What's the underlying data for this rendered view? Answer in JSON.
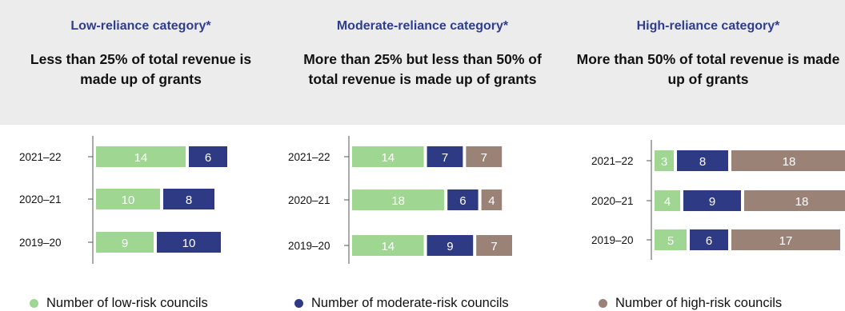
{
  "colors": {
    "low": "#9ed692",
    "moderate": "#2f3a85",
    "high": "#9a8277",
    "heading": "#2e3d8f",
    "band": "#ececec"
  },
  "panels": [
    {
      "title": "Low-reliance category*",
      "description": "Less than 25% of total revenue is made up of grants"
    },
    {
      "title": "Moderate-reliance category*",
      "description": "More than 25% but less than 50% of total revenue is made up of grants"
    },
    {
      "title": "High-reliance category*",
      "description": "More than 50% of total revenue is made up of grants"
    }
  ],
  "legend": [
    {
      "label": "Number of low-risk councils"
    },
    {
      "label": "Number of moderate-risk councils"
    },
    {
      "label": "Number of high-risk councils"
    }
  ],
  "chart_data": [
    {
      "type": "bar",
      "orientation": "horizontal",
      "stacked": true,
      "title": "Low-reliance category*",
      "categories": [
        "2021–22",
        "2020–21",
        "2019–20"
      ],
      "series": [
        {
          "name": "Number of low-risk councils",
          "values": [
            14,
            10,
            9
          ]
        },
        {
          "name": "Number of moderate-risk councils",
          "values": [
            6,
            8,
            10
          ]
        }
      ],
      "legend": "bottom",
      "grid": false
    },
    {
      "type": "bar",
      "orientation": "horizontal",
      "stacked": true,
      "title": "Moderate-reliance category*",
      "categories": [
        "2021–22",
        "2020–21",
        "2019–20"
      ],
      "series": [
        {
          "name": "Number of low-risk councils",
          "values": [
            14,
            18,
            14
          ]
        },
        {
          "name": "Number of moderate-risk councils",
          "values": [
            7,
            6,
            9
          ]
        },
        {
          "name": "Number of high-risk councils",
          "values": [
            7,
            4,
            7
          ]
        }
      ],
      "legend": "bottom",
      "grid": false
    },
    {
      "type": "bar",
      "orientation": "horizontal",
      "stacked": true,
      "title": "High-reliance category*",
      "categories": [
        "2021–22",
        "2020–21",
        "2019–20"
      ],
      "series": [
        {
          "name": "Number of low-risk councils",
          "values": [
            3,
            4,
            5
          ]
        },
        {
          "name": "Number of moderate-risk councils",
          "values": [
            8,
            9,
            6
          ]
        },
        {
          "name": "Number of high-risk councils",
          "values": [
            18,
            18,
            17
          ]
        }
      ],
      "legend": "bottom",
      "grid": false
    }
  ]
}
